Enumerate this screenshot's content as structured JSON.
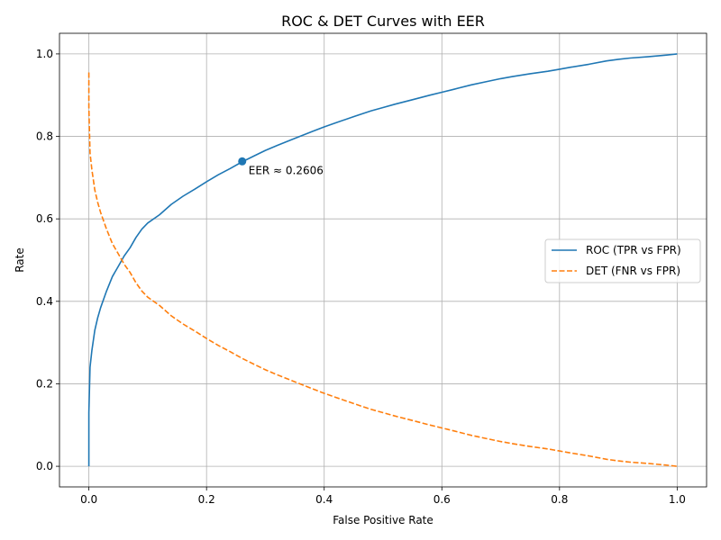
{
  "chart_data": {
    "type": "line",
    "title": "ROC & DET Curves with EER",
    "xlabel": "False Positive Rate",
    "ylabel": "Rate",
    "xlim": [
      -0.05,
      1.05
    ],
    "ylim": [
      -0.05,
      1.05
    ],
    "xticks": [
      0.0,
      0.2,
      0.4,
      0.6,
      0.8,
      1.0
    ],
    "yticks": [
      0.0,
      0.2,
      0.4,
      0.6,
      0.8,
      1.0
    ],
    "xtick_labels": [
      "0.0",
      "0.2",
      "0.4",
      "0.6",
      "0.8",
      "1.0"
    ],
    "ytick_labels": [
      "0.0",
      "0.2",
      "0.4",
      "0.6",
      "0.8",
      "1.0"
    ],
    "grid": true,
    "legend_position": "center-right",
    "series": [
      {
        "name": "ROC (TPR vs FPR)",
        "color": "#1f77b4",
        "style": "solid",
        "x": [
          0.0,
          0.0,
          0.002,
          0.005,
          0.01,
          0.015,
          0.02,
          0.03,
          0.04,
          0.05,
          0.06,
          0.07,
          0.08,
          0.09,
          0.1,
          0.12,
          0.14,
          0.16,
          0.18,
          0.2,
          0.22,
          0.24,
          0.26,
          0.28,
          0.3,
          0.32,
          0.35,
          0.38,
          0.4,
          0.42,
          0.45,
          0.48,
          0.5,
          0.52,
          0.55,
          0.58,
          0.6,
          0.62,
          0.65,
          0.68,
          0.7,
          0.72,
          0.75,
          0.78,
          0.8,
          0.82,
          0.85,
          0.88,
          0.9,
          0.92,
          0.95,
          0.98,
          1.0
        ],
        "y": [
          0.0,
          0.13,
          0.24,
          0.28,
          0.33,
          0.36,
          0.385,
          0.425,
          0.46,
          0.485,
          0.51,
          0.53,
          0.555,
          0.575,
          0.59,
          0.61,
          0.635,
          0.655,
          0.672,
          0.69,
          0.707,
          0.722,
          0.738,
          0.752,
          0.766,
          0.778,
          0.795,
          0.812,
          0.823,
          0.833,
          0.848,
          0.862,
          0.87,
          0.878,
          0.889,
          0.9,
          0.907,
          0.914,
          0.925,
          0.934,
          0.94,
          0.945,
          0.952,
          0.958,
          0.963,
          0.968,
          0.975,
          0.983,
          0.987,
          0.99,
          0.993,
          0.997,
          1.0
        ]
      },
      {
        "name": "DET (FNR vs FPR)",
        "color": "#ff7f0e",
        "style": "dashed",
        "x": [
          0.0,
          0.0,
          0.002,
          0.005,
          0.01,
          0.015,
          0.02,
          0.03,
          0.04,
          0.05,
          0.06,
          0.07,
          0.08,
          0.09,
          0.1,
          0.12,
          0.14,
          0.16,
          0.18,
          0.2,
          0.22,
          0.24,
          0.26,
          0.28,
          0.3,
          0.32,
          0.35,
          0.38,
          0.4,
          0.42,
          0.45,
          0.48,
          0.5,
          0.52,
          0.55,
          0.58,
          0.6,
          0.62,
          0.65,
          0.68,
          0.7,
          0.72,
          0.75,
          0.78,
          0.8,
          0.82,
          0.85,
          0.88,
          0.9,
          0.92,
          0.95,
          0.98,
          1.0
        ],
        "y": [
          0.955,
          0.87,
          0.76,
          0.72,
          0.67,
          0.64,
          0.615,
          0.575,
          0.54,
          0.515,
          0.49,
          0.47,
          0.445,
          0.425,
          0.41,
          0.39,
          0.365,
          0.345,
          0.328,
          0.31,
          0.293,
          0.278,
          0.262,
          0.248,
          0.234,
          0.222,
          0.205,
          0.188,
          0.177,
          0.167,
          0.152,
          0.138,
          0.13,
          0.122,
          0.111,
          0.1,
          0.093,
          0.086,
          0.075,
          0.066,
          0.06,
          0.055,
          0.048,
          0.042,
          0.037,
          0.032,
          0.025,
          0.017,
          0.013,
          0.01,
          0.007,
          0.003,
          0.0
        ]
      }
    ],
    "annotations": [
      {
        "text": "EER ≈ 0.2606",
        "x": 0.2606,
        "y": 0.7394
      }
    ],
    "markers": [
      {
        "x": 0.2606,
        "y": 0.7394,
        "color": "#1f77b4"
      }
    ]
  }
}
